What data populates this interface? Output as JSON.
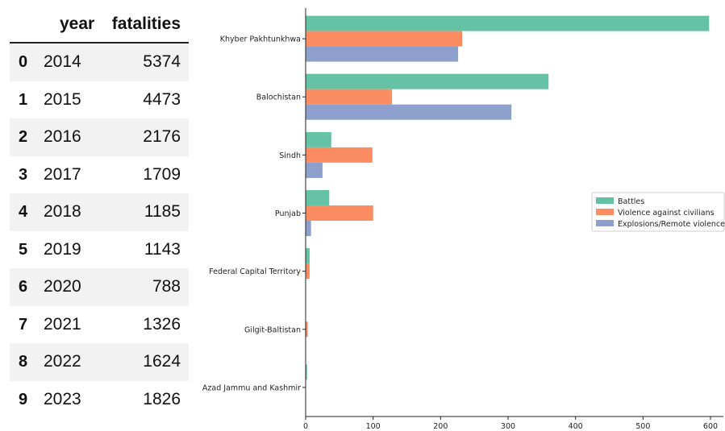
{
  "table": {
    "columns": [
      "year",
      "fatalities"
    ],
    "rows": [
      {
        "index": "0",
        "year": "2014",
        "fatalities": "5374"
      },
      {
        "index": "1",
        "year": "2015",
        "fatalities": "4473"
      },
      {
        "index": "2",
        "year": "2016",
        "fatalities": "2176"
      },
      {
        "index": "3",
        "year": "2017",
        "fatalities": "1709"
      },
      {
        "index": "4",
        "year": "2018",
        "fatalities": "1185"
      },
      {
        "index": "5",
        "year": "2019",
        "fatalities": "1143"
      },
      {
        "index": "6",
        "year": "2020",
        "fatalities": "788"
      },
      {
        "index": "7",
        "year": "2021",
        "fatalities": "1326"
      },
      {
        "index": "8",
        "year": "2022",
        "fatalities": "1624"
      },
      {
        "index": "9",
        "year": "2023",
        "fatalities": "1826"
      }
    ]
  },
  "chart_data": {
    "type": "bar",
    "orientation": "horizontal",
    "categories": [
      "Khyber Pakhtunkhwa",
      "Balochistan",
      "Sindh",
      "Punjab",
      "Federal Capital Territory",
      "Gilgit-Baltistan",
      "Azad Jammu and Kashmir"
    ],
    "series": [
      {
        "name": "Battles",
        "color": "#66c2a5",
        "values": [
          598,
          360,
          38,
          35,
          6,
          0,
          2
        ]
      },
      {
        "name": "Violence against civilians",
        "color": "#fc8d62",
        "values": [
          232,
          128,
          99,
          100,
          6,
          3,
          0
        ]
      },
      {
        "name": "Explosions/Remote violence",
        "color": "#8da0cb",
        "values": [
          226,
          305,
          25,
          8,
          0,
          0,
          0
        ]
      }
    ],
    "xlim": [
      0,
      620
    ],
    "xticks": [
      0,
      100,
      200,
      300,
      400,
      500,
      600
    ],
    "grid": false,
    "legend": "center-right",
    "title": "",
    "xlabel": "",
    "ylabel": ""
  }
}
